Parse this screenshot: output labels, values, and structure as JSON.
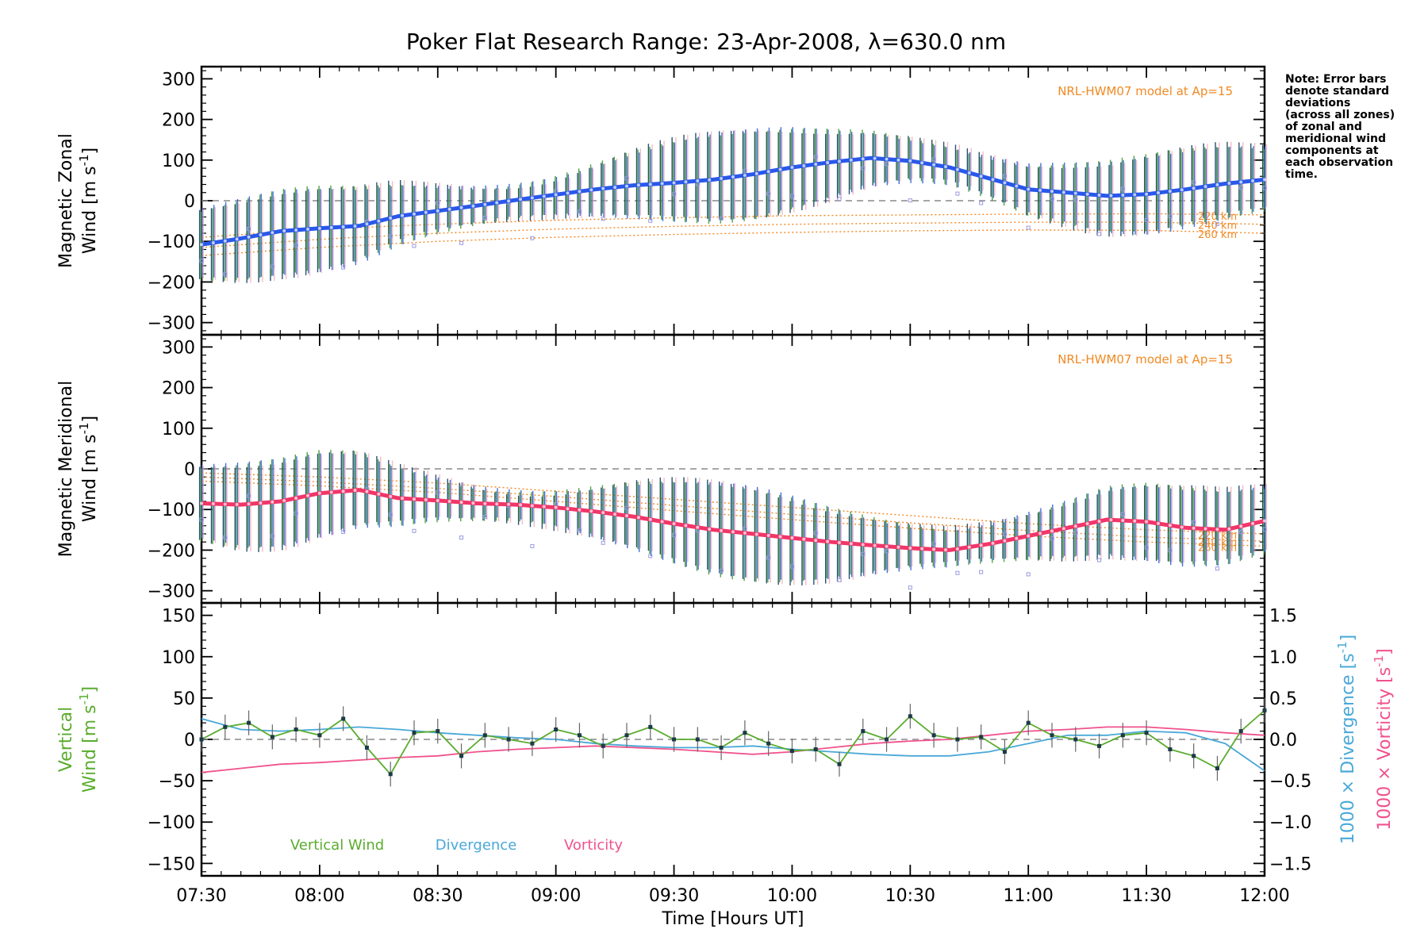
{
  "title": "Poker Flat Research Range: 23-Apr-2008, λ=630.0 nm",
  "note": [
    "Note: Error bars",
    "denote standard",
    "deviations",
    "(across all zones)",
    "of zonal and",
    "meridional wind",
    "components at",
    "each observation",
    "time."
  ],
  "colors": {
    "zonal": "#2a58e8",
    "meridional": "#f0366a",
    "vertical": "#5aac2e",
    "divergence": "#4aa8d8",
    "vorticity": "#f0528c",
    "model": "#f08a24",
    "zone_points": "#9a9ae0",
    "errbar_dark": "#1c4a68",
    "errbar_green": "#4c9c3c",
    "errbar_blue": "#3a68d8",
    "errbar_pink": "#f0a0b0"
  },
  "chart_data": [
    {
      "type": "line",
      "panel": "zonal",
      "ylabel_line1": "Magnetic Zonal",
      "ylabel_line2_text": "Wind",
      "ylabel_units": "[m s",
      "ylabel_units_sup": "-1",
      "ylabel_units_close": "]",
      "ylim": [
        -330,
        330
      ],
      "yticks": [
        -300,
        -200,
        -100,
        0,
        100,
        200,
        300
      ],
      "ytick_labels": [
        "−300",
        "−200",
        "−100",
        "0",
        "100",
        "200",
        "300"
      ],
      "model_label": "NRL-HWM07 model at Ap=15",
      "model_curve_labels": [
        "220 km",
        "240 km",
        "260 km"
      ],
      "series": [
        {
          "name": "zonal wind",
          "x": [
            0,
            10,
            20,
            30,
            40,
            50,
            60,
            70,
            80,
            90,
            100,
            110,
            120,
            130,
            140,
            150,
            160,
            170,
            180,
            190,
            200,
            210,
            220,
            230,
            240,
            250,
            260,
            270
          ],
          "y": [
            -108,
            -93,
            -75,
            -68,
            -62,
            -38,
            -25,
            -12,
            2,
            15,
            28,
            38,
            44,
            52,
            65,
            82,
            95,
            105,
            98,
            82,
            55,
            28,
            20,
            12,
            16,
            28,
            42,
            52
          ]
        }
      ],
      "model_curves": [
        {
          "name": "220 km",
          "x": [
            0,
            30,
            60,
            90,
            120,
            150,
            180,
            210,
            240,
            270
          ],
          "y": [
            -90,
            -70,
            -58,
            -48,
            -42,
            -37,
            -35,
            -33,
            -32,
            -35
          ]
        },
        {
          "name": "240 km",
          "x": [
            0,
            30,
            60,
            90,
            120,
            150,
            180,
            210,
            240,
            270
          ],
          "y": [
            -115,
            -95,
            -80,
            -70,
            -63,
            -58,
            -55,
            -53,
            -53,
            -58
          ]
        },
        {
          "name": "260 km",
          "x": [
            0,
            30,
            60,
            90,
            120,
            150,
            180,
            210,
            240,
            270
          ],
          "y": [
            -135,
            -115,
            -100,
            -90,
            -83,
            -78,
            -74,
            -72,
            -73,
            -80
          ]
        }
      ]
    },
    {
      "type": "line",
      "panel": "meridional",
      "ylabel_line1": "Magnetic Meridional",
      "ylabel_line2_text": "Wind",
      "ylabel_units": "[m s",
      "ylabel_units_sup": "-1",
      "ylabel_units_close": "]",
      "ylim": [
        -330,
        330
      ],
      "yticks": [
        -300,
        -200,
        -100,
        0,
        100,
        200,
        300
      ],
      "ytick_labels": [
        "−300",
        "−200",
        "−100",
        "0",
        "100",
        "200",
        "300"
      ],
      "model_label": "NRL-HWM07 model at Ap=15",
      "model_curve_labels": [
        "220 km",
        "240 km",
        "260 km"
      ],
      "series": [
        {
          "name": "meridional wind",
          "x": [
            0,
            10,
            20,
            30,
            40,
            50,
            60,
            70,
            80,
            90,
            100,
            110,
            120,
            130,
            140,
            150,
            160,
            170,
            180,
            190,
            200,
            210,
            220,
            230,
            240,
            250,
            260,
            270
          ],
          "y": [
            -85,
            -88,
            -80,
            -60,
            -52,
            -72,
            -78,
            -85,
            -88,
            -95,
            -105,
            -118,
            -135,
            -150,
            -160,
            -170,
            -180,
            -188,
            -195,
            -200,
            -185,
            -165,
            -145,
            -125,
            -130,
            -145,
            -150,
            -128
          ]
        }
      ],
      "model_curves": [
        {
          "name": "220 km",
          "x": [
            0,
            30,
            60,
            90,
            120,
            150,
            180,
            210,
            240,
            270
          ],
          "y": [
            -10,
            -20,
            -35,
            -55,
            -75,
            -95,
            -115,
            -135,
            -150,
            -160
          ]
        },
        {
          "name": "240 km",
          "x": [
            0,
            30,
            60,
            90,
            120,
            150,
            180,
            210,
            240,
            270
          ],
          "y": [
            -20,
            -32,
            -48,
            -68,
            -90,
            -112,
            -133,
            -152,
            -168,
            -178
          ]
        },
        {
          "name": "260 km",
          "x": [
            0,
            30,
            60,
            90,
            120,
            150,
            180,
            210,
            240,
            270
          ],
          "y": [
            -30,
            -42,
            -58,
            -80,
            -103,
            -125,
            -146,
            -165,
            -180,
            -190
          ]
        }
      ]
    },
    {
      "type": "line",
      "panel": "vertical",
      "ylabel_line1": "Vertical",
      "ylabel_line2_text": "Wind",
      "ylabel_units": "[m s",
      "ylabel_units_sup": "-1",
      "ylabel_units_close": "]",
      "ylim": [
        -165,
        165
      ],
      "yticks": [
        -150,
        -100,
        -50,
        0,
        50,
        100,
        150
      ],
      "ytick_labels": [
        "−150",
        "−100",
        "−50",
        "0",
        "50",
        "100",
        "150"
      ],
      "y2lim": [
        -1.65,
        1.65
      ],
      "y2ticks": [
        -1.5,
        -1.0,
        -0.5,
        0.0,
        0.5,
        1.0,
        1.5
      ],
      "y2tick_labels": [
        "−1.5",
        "−1.0",
        "−0.5",
        "0.0",
        "0.5",
        "1.0",
        "1.5"
      ],
      "y2label_div": "1000 × Divergence",
      "y2label_vor": "1000 × Vorticity",
      "y2label_units": "[s",
      "y2label_units_sup": "-1",
      "y2label_units_close": "]",
      "legend": [
        "Vertical Wind",
        "Divergence",
        "Vorticity"
      ],
      "series": [
        {
          "name": "Vertical Wind",
          "x": [
            0,
            6,
            12,
            18,
            24,
            30,
            36,
            42,
            48,
            54,
            60,
            66,
            72,
            78,
            84,
            90,
            96,
            102,
            108,
            114,
            120,
            126,
            132,
            138,
            144,
            150,
            156,
            162,
            168,
            174,
            180,
            186,
            192,
            198,
            204,
            210,
            216,
            222,
            228,
            234,
            240,
            246,
            252,
            258,
            264,
            270
          ],
          "y": [
            0,
            15,
            20,
            3,
            12,
            5,
            25,
            -10,
            -42,
            8,
            10,
            -20,
            5,
            0,
            -5,
            12,
            5,
            -8,
            5,
            15,
            0,
            0,
            -10,
            8,
            -5,
            -14,
            -12,
            -30,
            10,
            0,
            28,
            5,
            0,
            3,
            -15,
            20,
            5,
            0,
            -8,
            5,
            8,
            -12,
            -20,
            -35,
            10,
            35
          ]
        },
        {
          "name": "Divergence",
          "x": [
            0,
            10,
            20,
            30,
            40,
            50,
            60,
            70,
            80,
            90,
            100,
            110,
            120,
            130,
            140,
            150,
            160,
            170,
            180,
            190,
            200,
            210,
            220,
            230,
            240,
            250,
            260,
            270
          ],
          "y": [
            0.25,
            0.12,
            0.1,
            0.12,
            0.15,
            0.12,
            0.08,
            0.05,
            0.02,
            0.0,
            -0.05,
            -0.08,
            -0.1,
            -0.1,
            -0.08,
            -0.12,
            -0.15,
            -0.18,
            -0.2,
            -0.2,
            -0.15,
            -0.05,
            0.05,
            0.05,
            0.1,
            0.08,
            -0.05,
            -0.38
          ]
        },
        {
          "name": "Vorticity",
          "x": [
            0,
            10,
            20,
            30,
            40,
            50,
            60,
            70,
            80,
            90,
            100,
            110,
            120,
            130,
            140,
            150,
            160,
            170,
            180,
            190,
            200,
            210,
            220,
            230,
            240,
            250,
            260,
            270
          ],
          "y": [
            -0.4,
            -0.35,
            -0.3,
            -0.28,
            -0.25,
            -0.22,
            -0.2,
            -0.15,
            -0.12,
            -0.1,
            -0.08,
            -0.1,
            -0.12,
            -0.15,
            -0.18,
            -0.15,
            -0.1,
            -0.05,
            -0.02,
            0.0,
            0.05,
            0.1,
            0.12,
            0.15,
            0.15,
            0.12,
            0.08,
            0.05
          ]
        }
      ]
    }
  ],
  "xaxis": {
    "label": "Time [Hours UT]",
    "range_minutes": [
      0,
      270
    ],
    "tick_minutes": [
      0,
      30,
      60,
      90,
      120,
      150,
      180,
      210,
      240,
      270
    ],
    "tick_labels": [
      "07:30",
      "08:00",
      "08:30",
      "09:00",
      "09:30",
      "10:00",
      "10:30",
      "11:00",
      "11:30",
      "12:00"
    ]
  }
}
